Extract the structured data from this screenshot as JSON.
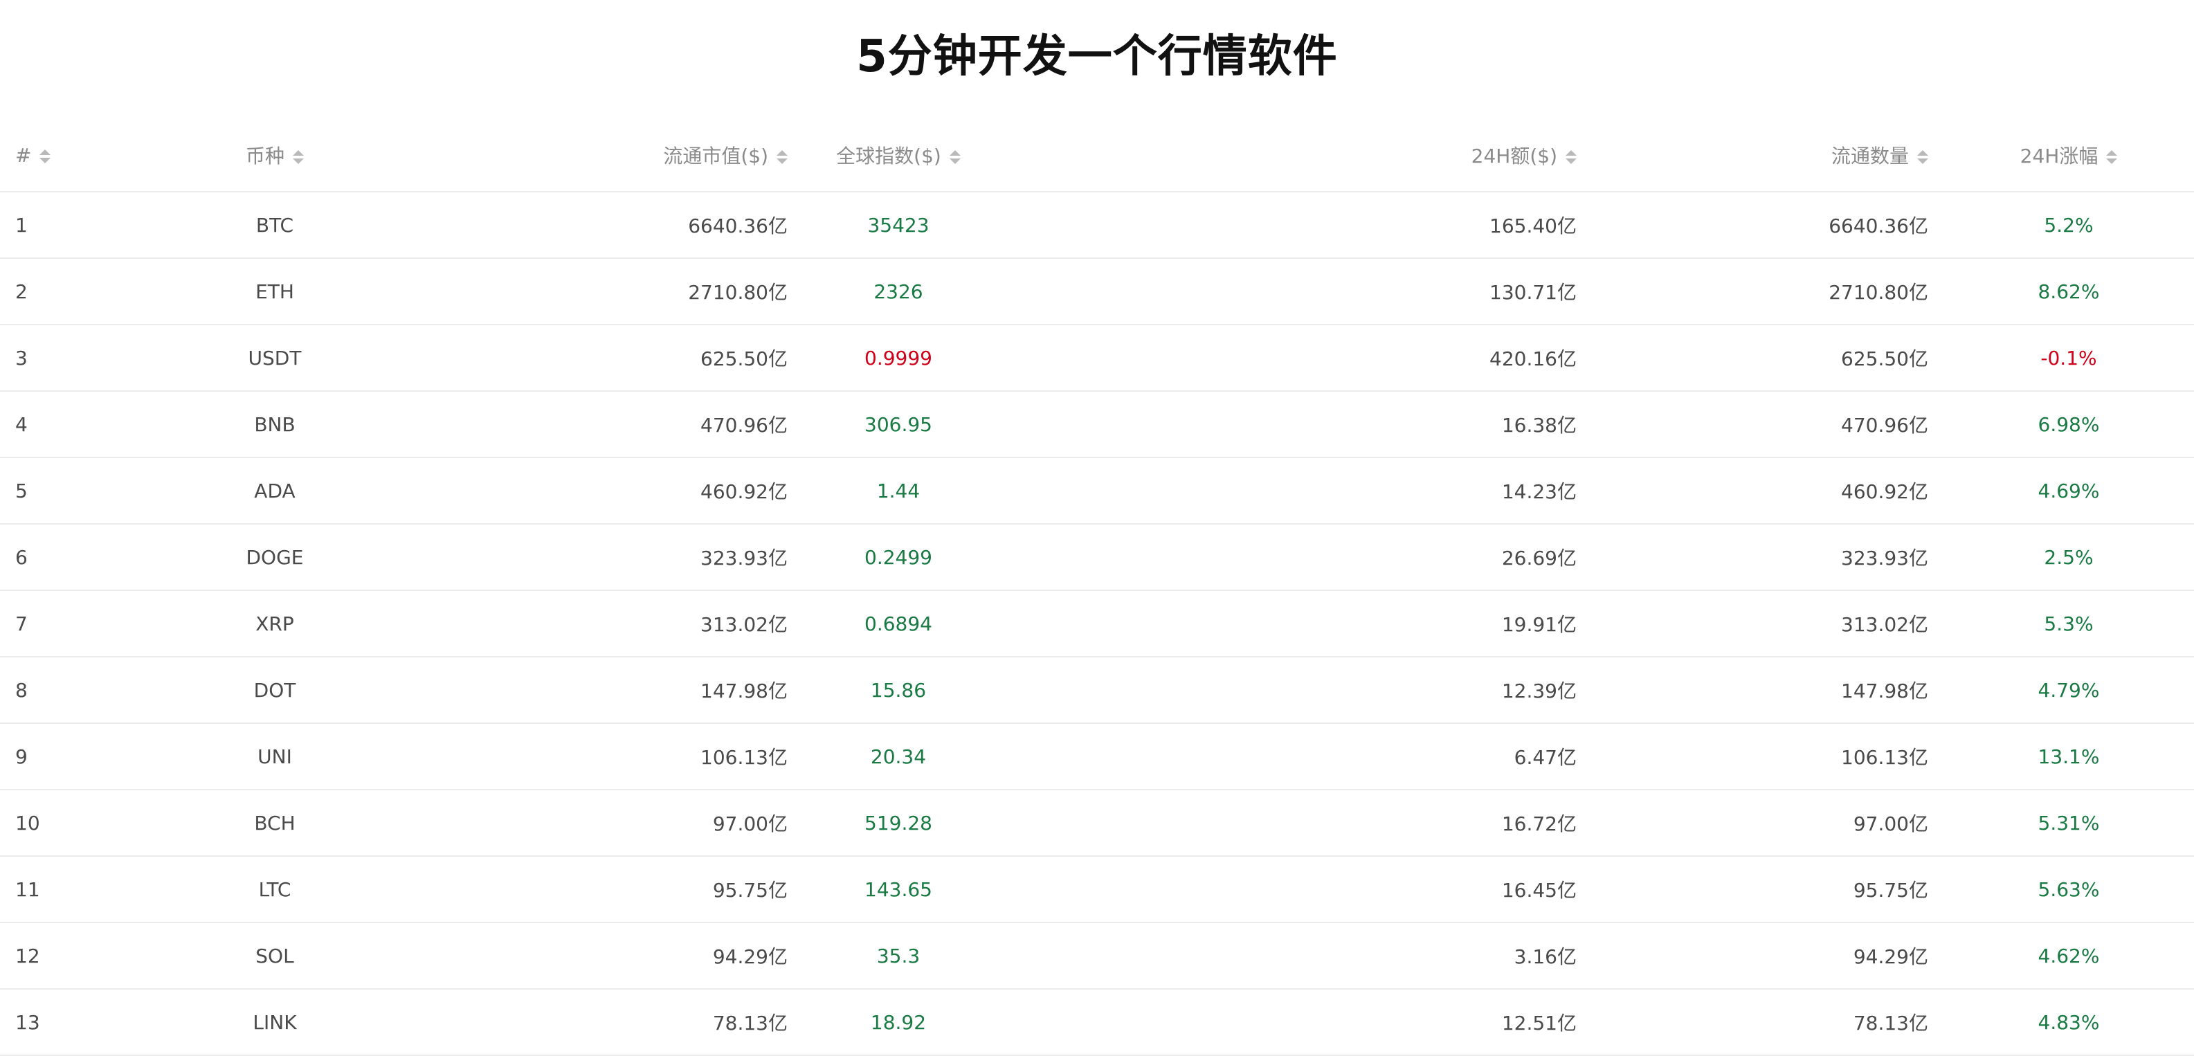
{
  "title": "5分钟开发一个行情软件",
  "headers": {
    "num": "#",
    "coin": "币种",
    "cap": "流通市值($)",
    "index": "全球指数($)",
    "vol": "24H额($)",
    "supply": "流通数量",
    "change": "24H涨幅"
  },
  "colors": {
    "positive": "#1a7a43",
    "negative": "#d0021b",
    "header_text": "#8a8a8a",
    "row_text": "#4a4a4a"
  },
  "rows": [
    {
      "num": "1",
      "coin": "BTC",
      "cap": "6640.36亿",
      "index": "35423",
      "vol": "165.40亿",
      "supply": "6640.36亿",
      "change": "5.2%",
      "dir": "up"
    },
    {
      "num": "2",
      "coin": "ETH",
      "cap": "2710.80亿",
      "index": "2326",
      "vol": "130.71亿",
      "supply": "2710.80亿",
      "change": "8.62%",
      "dir": "up"
    },
    {
      "num": "3",
      "coin": "USDT",
      "cap": "625.50亿",
      "index": "0.9999",
      "vol": "420.16亿",
      "supply": "625.50亿",
      "change": "-0.1%",
      "dir": "down"
    },
    {
      "num": "4",
      "coin": "BNB",
      "cap": "470.96亿",
      "index": "306.95",
      "vol": "16.38亿",
      "supply": "470.96亿",
      "change": "6.98%",
      "dir": "up"
    },
    {
      "num": "5",
      "coin": "ADA",
      "cap": "460.92亿",
      "index": "1.44",
      "vol": "14.23亿",
      "supply": "460.92亿",
      "change": "4.69%",
      "dir": "up"
    },
    {
      "num": "6",
      "coin": "DOGE",
      "cap": "323.93亿",
      "index": "0.2499",
      "vol": "26.69亿",
      "supply": "323.93亿",
      "change": "2.5%",
      "dir": "up"
    },
    {
      "num": "7",
      "coin": "XRP",
      "cap": "313.02亿",
      "index": "0.6894",
      "vol": "19.91亿",
      "supply": "313.02亿",
      "change": "5.3%",
      "dir": "up"
    },
    {
      "num": "8",
      "coin": "DOT",
      "cap": "147.98亿",
      "index": "15.86",
      "vol": "12.39亿",
      "supply": "147.98亿",
      "change": "4.79%",
      "dir": "up"
    },
    {
      "num": "9",
      "coin": "UNI",
      "cap": "106.13亿",
      "index": "20.34",
      "vol": "6.47亿",
      "supply": "106.13亿",
      "change": "13.1%",
      "dir": "up"
    },
    {
      "num": "10",
      "coin": "BCH",
      "cap": "97.00亿",
      "index": "519.28",
      "vol": "16.72亿",
      "supply": "97.00亿",
      "change": "5.31%",
      "dir": "up"
    },
    {
      "num": "11",
      "coin": "LTC",
      "cap": "95.75亿",
      "index": "143.65",
      "vol": "16.45亿",
      "supply": "95.75亿",
      "change": "5.63%",
      "dir": "up"
    },
    {
      "num": "12",
      "coin": "SOL",
      "cap": "94.29亿",
      "index": "35.3",
      "vol": "3.16亿",
      "supply": "94.29亿",
      "change": "4.62%",
      "dir": "up"
    },
    {
      "num": "13",
      "coin": "LINK",
      "cap": "78.13亿",
      "index": "18.92",
      "vol": "12.51亿",
      "supply": "78.13亿",
      "change": "4.83%",
      "dir": "up"
    }
  ]
}
